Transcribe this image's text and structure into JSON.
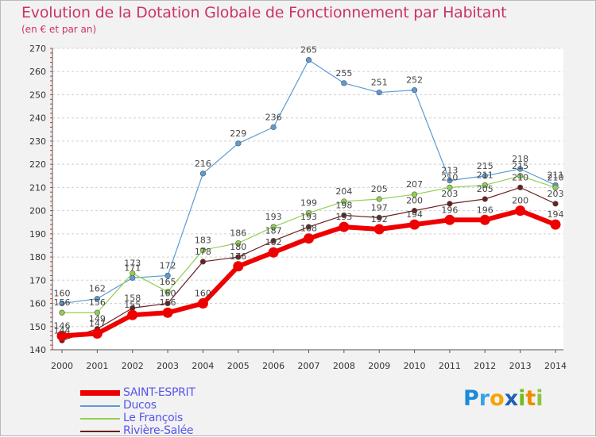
{
  "header": {
    "title": "Evolution de la Dotation Globale de Fonctionnement par Habitant",
    "subtitle": "(en € et par an)"
  },
  "logo": {
    "text": "Proxiti",
    "letters": [
      {
        "ch": "P",
        "color": "#1c8ad8"
      },
      {
        "ch": "r",
        "color": "#3aa3e0"
      },
      {
        "ch": "o",
        "color": "#f7a400"
      },
      {
        "ch": "x",
        "color": "#1f5fb8"
      },
      {
        "ch": "i",
        "color": "#6fbe1e"
      },
      {
        "ch": "t",
        "color": "#f08a00"
      },
      {
        "ch": "i",
        "color": "#8cc63f"
      }
    ]
  },
  "chart_data": {
    "type": "line",
    "title": "Evolution de la Dotation Globale de Fonctionnement par Habitant",
    "subtitle": "(en € et par an)",
    "x": [
      2000,
      2001,
      2002,
      2003,
      2004,
      2005,
      2006,
      2007,
      2008,
      2009,
      2010,
      2011,
      2012,
      2013,
      2014
    ],
    "ylim": [
      140,
      270
    ],
    "yticks": [
      140,
      150,
      160,
      170,
      180,
      190,
      200,
      210,
      220,
      230,
      240,
      250,
      260,
      270
    ],
    "grid": "horizontal dashed",
    "legend_position": "bottom-left",
    "series": [
      {
        "name": "SAINT-ESPRIT",
        "color": "#ee0000",
        "values": [
          146,
          147,
          155,
          156,
          160,
          176,
          182,
          188,
          193,
          192,
          194,
          196,
          196,
          200,
          194
        ]
      },
      {
        "name": "Ducos",
        "color": "#5b9bd5",
        "values": [
          160,
          162,
          171,
          172,
          216,
          229,
          236,
          265,
          255,
          251,
          252,
          213,
          215,
          218,
          211
        ]
      },
      {
        "name": "Le François",
        "color": "#8fd14f",
        "values": [
          156,
          156,
          173,
          165,
          183,
          186,
          193,
          199,
          204,
          205,
          207,
          210,
          211,
          215,
          210
        ]
      },
      {
        "name": "Rivière-Salée",
        "color": "#6b1f1f",
        "values": [
          144,
          149,
          158,
          160,
          178,
          180,
          187,
          193,
          198,
          197,
          200,
          203,
          205,
          210,
          203
        ]
      }
    ]
  }
}
